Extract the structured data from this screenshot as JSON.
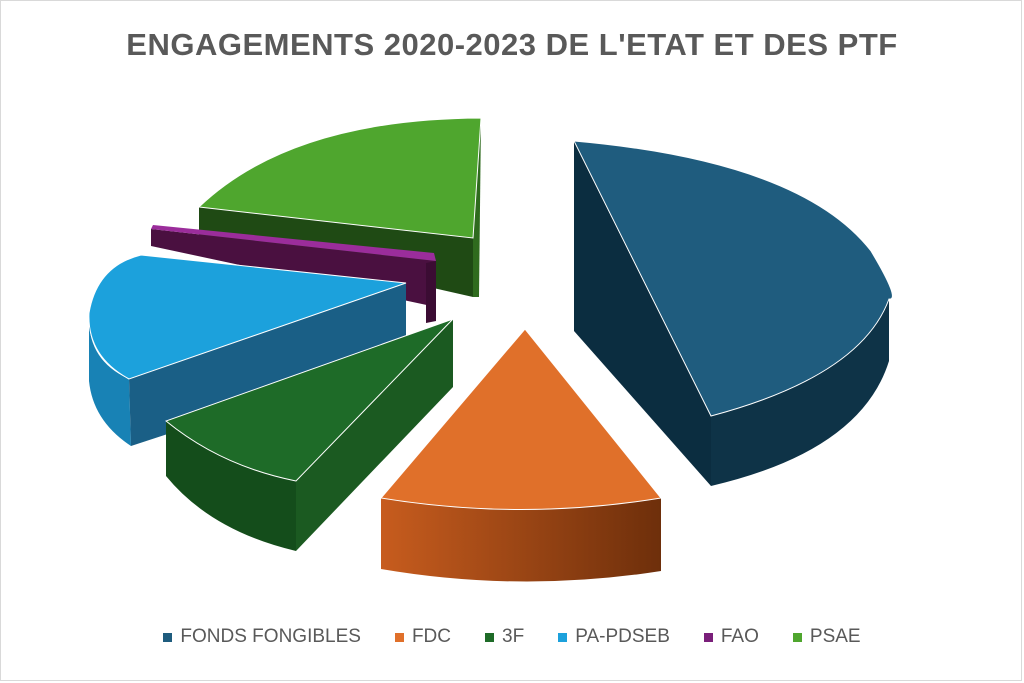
{
  "chart_data": {
    "type": "pie",
    "style": "3d-exploded",
    "title": "ENGAGEMENTS 2020-2023 DE L'ETAT ET DES PTF",
    "legend_position": "bottom",
    "categories": [
      "FONDS FONGIBLES",
      "FDC",
      "3F",
      "PA-PDSEB",
      "FAO",
      "PSAE"
    ],
    "values": [
      34,
      16,
      12,
      14,
      2,
      22
    ],
    "colors": [
      "#1F5C7E",
      "#E0702A",
      "#1E6B28",
      "#1CA1DC",
      "#7A1F7A",
      "#4FA62E"
    ]
  }
}
